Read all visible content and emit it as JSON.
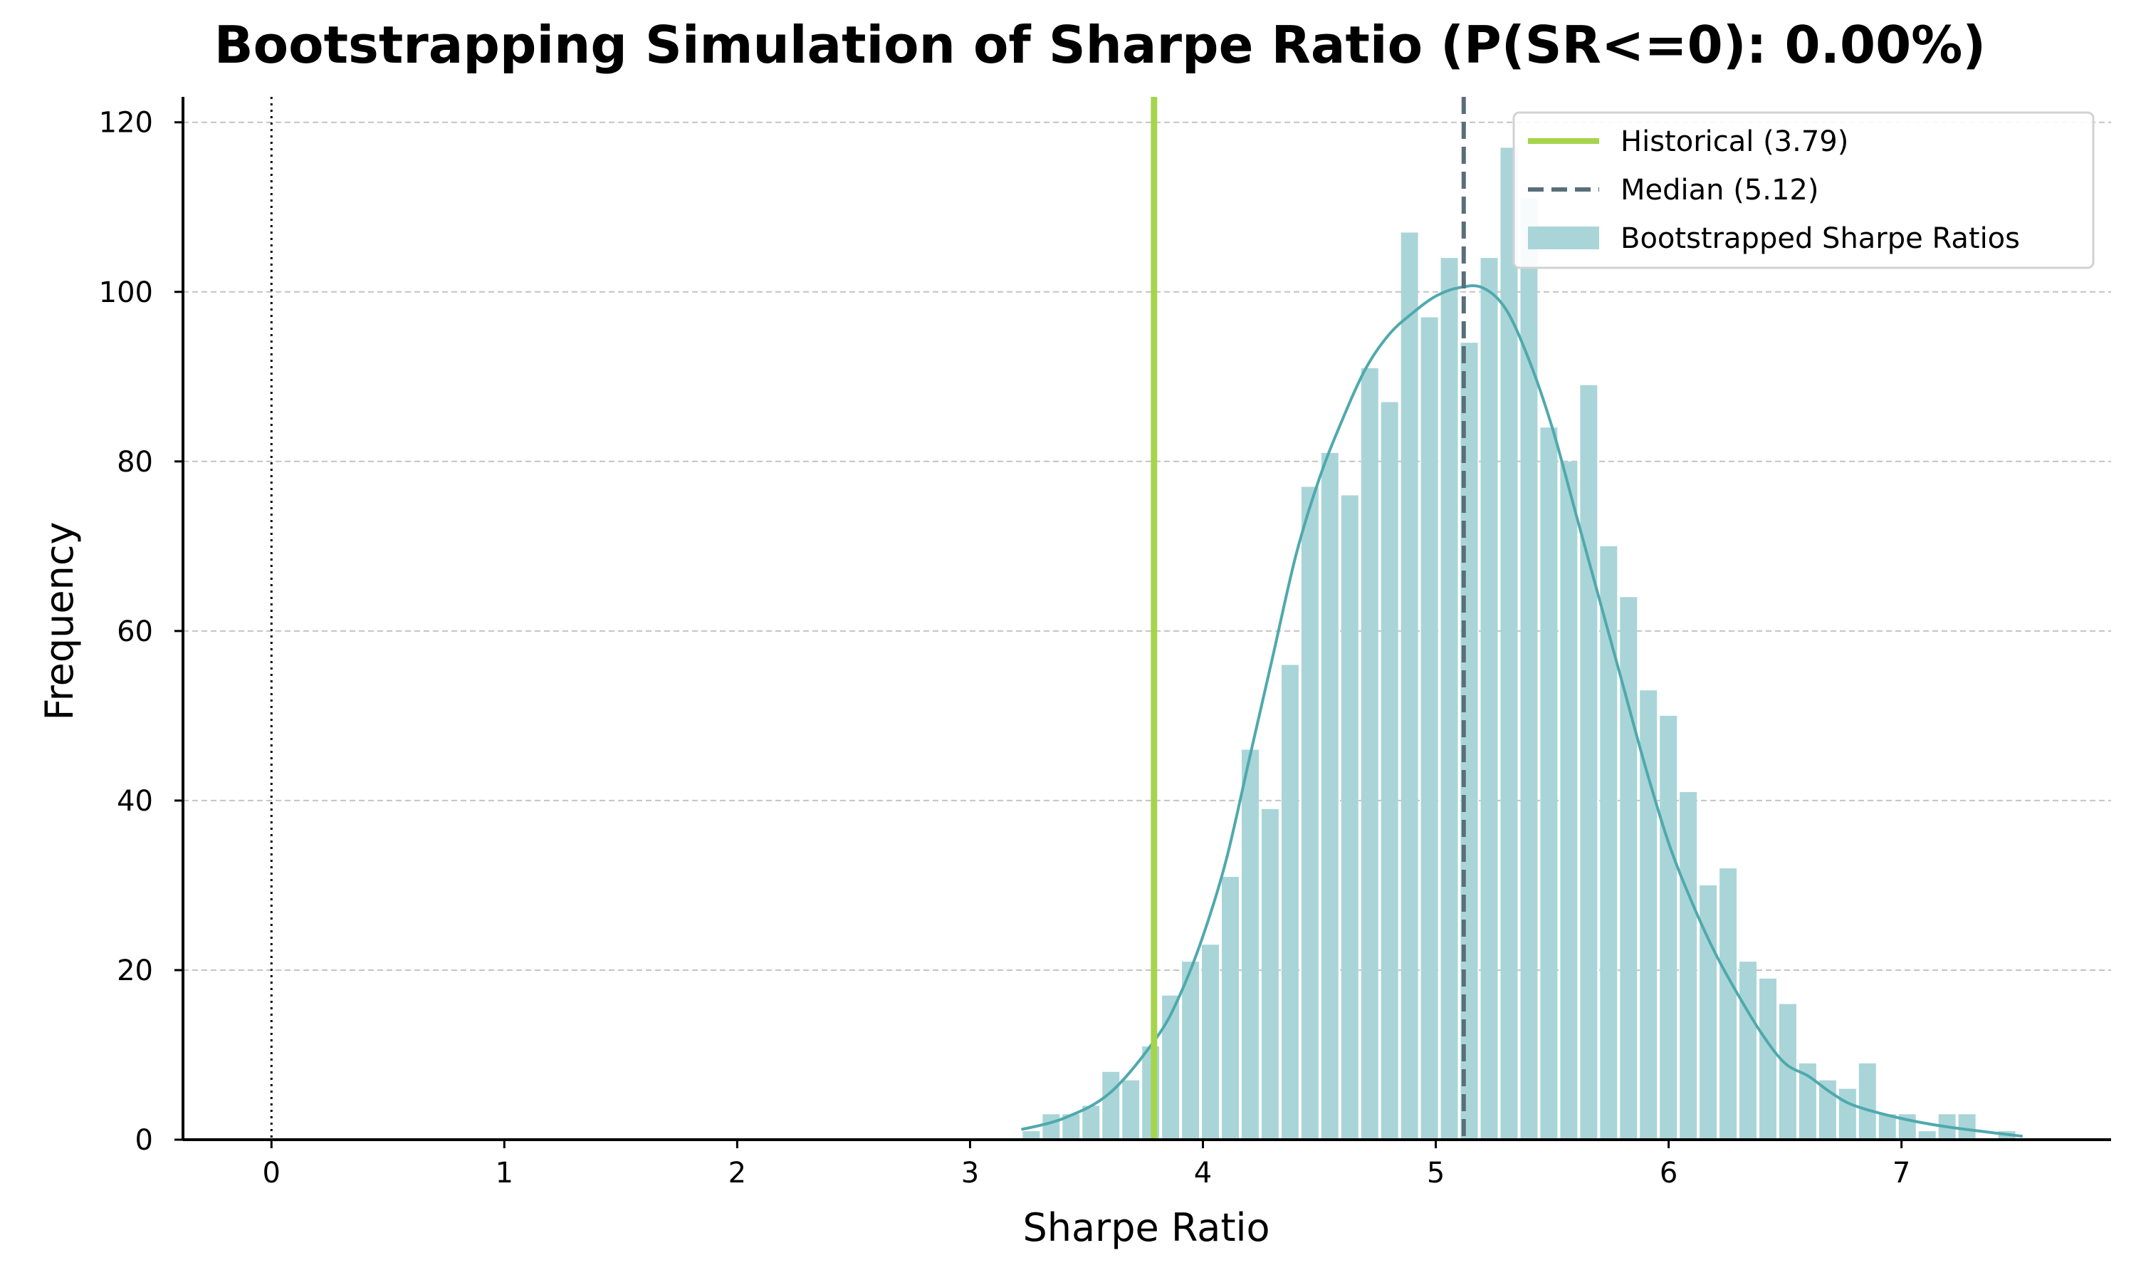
{
  "chart_data": {
    "type": "bar",
    "title": "Bootstrapping Simulation of Sharpe Ratio (P(SR<=0): 0.00%)",
    "xlabel": "Sharpe Ratio",
    "ylabel": "Frequency",
    "xlim": [
      -0.38,
      7.9
    ],
    "ylim": [
      0,
      123
    ],
    "xticks": [
      0,
      1,
      2,
      3,
      4,
      5,
      6,
      7
    ],
    "yticks": [
      0,
      20,
      40,
      60,
      80,
      100,
      120
    ],
    "grid": "y-dashed",
    "legend_position": "top-right",
    "bin_width": 0.0855,
    "bins_start": 3.22,
    "histogram": {
      "name": "Bootstrapped Sharpe Ratios",
      "color": "#a9d5d8",
      "counts": [
        1,
        3,
        3,
        4,
        8,
        7,
        11,
        17,
        21,
        23,
        31,
        46,
        39,
        56,
        77,
        81,
        76,
        91,
        87,
        107,
        97,
        104,
        94,
        104,
        117,
        111,
        84,
        80,
        89,
        70,
        64,
        53,
        50,
        41,
        30,
        32,
        21,
        19,
        16,
        9,
        7,
        6,
        9,
        3,
        3,
        1,
        3,
        3,
        0,
        1
      ]
    },
    "kde": {
      "color": "#4fa9ad",
      "x": [
        3.22,
        3.4,
        3.6,
        3.8,
        3.9,
        4.0,
        4.1,
        4.2,
        4.3,
        4.4,
        4.5,
        4.6,
        4.7,
        4.8,
        4.9,
        5.0,
        5.1,
        5.2,
        5.3,
        5.4,
        5.5,
        5.6,
        5.7,
        5.8,
        5.9,
        6.0,
        6.1,
        6.2,
        6.3,
        6.4,
        6.5,
        6.6,
        6.7,
        6.8,
        7.0,
        7.2,
        7.52
      ],
      "y": [
        1.2,
        2.5,
        5.5,
        12,
        17,
        24,
        33,
        45,
        57,
        69,
        78,
        85,
        91,
        95,
        97.5,
        99.5,
        100.5,
        100.5,
        98,
        92,
        84,
        74,
        64,
        54,
        44,
        35,
        28,
        22,
        17,
        12.5,
        9,
        7.5,
        5.5,
        4,
        2.5,
        1.5,
        0.4
      ]
    },
    "vlines": [
      {
        "name": "Historical (3.79)",
        "x": 3.79,
        "style": "solid",
        "color": "#a6d44d"
      },
      {
        "name": "Median (5.12)",
        "x": 5.12,
        "style": "dashed",
        "color": "#5a6e7a"
      },
      {
        "x": 0,
        "style": "dotted",
        "color": "#000000"
      }
    ],
    "legend": [
      {
        "label": "Historical (3.79)",
        "kind": "solid-line",
        "color": "#a6d44d"
      },
      {
        "label": "Median (5.12)",
        "kind": "dashed-line",
        "color": "#5a6e7a"
      },
      {
        "label": "Bootstrapped Sharpe Ratios",
        "kind": "patch",
        "color": "#a9d5d8"
      }
    ]
  }
}
